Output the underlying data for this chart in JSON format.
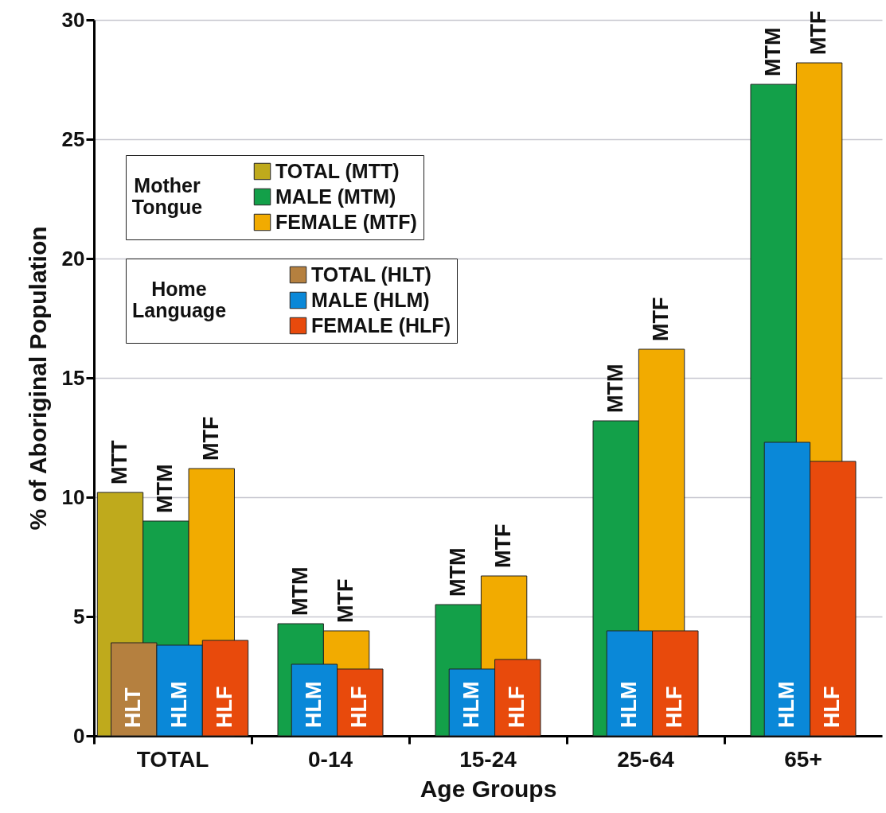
{
  "chart_data": {
    "type": "bar",
    "xlabel": "Age Groups",
    "ylabel": "% of Aboriginal Population",
    "categories": [
      "TOTAL",
      "0-14",
      "15-24",
      "25-64",
      "65+"
    ],
    "ylim": [
      0,
      30
    ],
    "yticks": [
      0,
      5,
      10,
      15,
      20,
      25,
      30
    ],
    "grid": "y",
    "legend": "top left",
    "legend_title": [
      "Mother Tongue",
      "Home Language"
    ],
    "series": [
      {
        "name": "TOTAL (MTT)",
        "color": "#bfaa1c",
        "values": [
          10.2,
          null,
          null,
          null,
          null
        ],
        "value_labels": [
          "MTT",
          null,
          null,
          null,
          null
        ]
      },
      {
        "name": "MALE (MTM)",
        "color": "#13a049",
        "values": [
          9.0,
          4.7,
          5.5,
          13.2,
          27.3
        ],
        "value_labels": [
          "MTM",
          "MTM",
          "MTM",
          "MTM",
          "MTM"
        ]
      },
      {
        "name": "FEMALE (MTF)",
        "color": "#f2ab00",
        "values": [
          11.2,
          4.4,
          6.7,
          16.2,
          28.2
        ],
        "value_labels": [
          "MTF",
          "MTF",
          "MTF",
          "MTF",
          "MTF"
        ]
      },
      {
        "name": "TOTAL (HLT)",
        "color": "#b5803f",
        "values": [
          3.9,
          null,
          null,
          null,
          null
        ],
        "value_labels": [
          "HLT",
          null,
          null,
          null,
          null
        ]
      },
      {
        "name": "MALE (HLM)",
        "color": "#0a88d8",
        "values": [
          3.8,
          3.0,
          2.8,
          4.4,
          12.3
        ],
        "value_labels": [
          "HLM",
          "HLM",
          "HLM",
          "HLM",
          "HLM"
        ]
      },
      {
        "name": "FEMALE (HLF)",
        "color": "#e84a0c",
        "values": [
          4.0,
          2.8,
          3.2,
          4.4,
          11.5
        ],
        "value_labels": [
          "HLF",
          "HLF",
          "HLF",
          "HLF",
          "HLF"
        ]
      }
    ]
  }
}
